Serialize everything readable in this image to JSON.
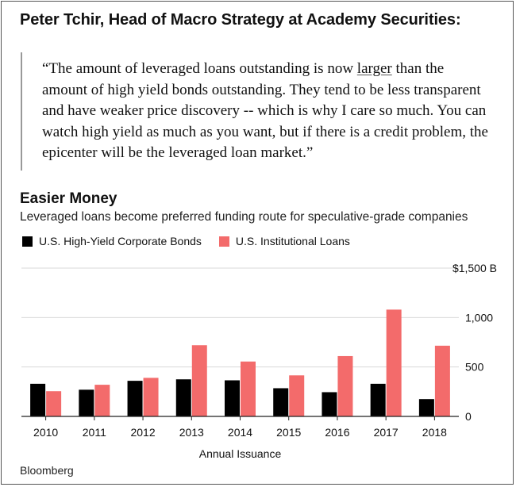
{
  "headline": "Peter Tchir, Head of Macro Strategy at Academy Securities:",
  "quote": {
    "before_link": "“The amount of leveraged loans outstanding is now ",
    "link_text": "larger",
    "after_link": " than the amount of high yield bonds outstanding. They tend to be less transparent and have weaker price discovery -- which is why I care so much. You can watch high yield as much as you want, but if there is a credit problem, the epicenter will be the leveraged loan market.”"
  },
  "colors": {
    "bonds": "#000000",
    "loans": "#f36b6b",
    "grid": "#d9d9d9",
    "axis": "#222222"
  },
  "chart_data": {
    "type": "bar",
    "title": "Easier Money",
    "subtitle": "Leveraged loans become preferred funding route for speculative-grade companies",
    "xlabel": "Annual Issuance",
    "ylabel": "",
    "categories": [
      "2010",
      "2011",
      "2012",
      "2013",
      "2014",
      "2015",
      "2016",
      "2017",
      "2018"
    ],
    "series": [
      {
        "name": "U.S. High-Yield Corporate Bonds",
        "values": [
          330,
          270,
          360,
          375,
          365,
          285,
          245,
          330,
          175
        ]
      },
      {
        "name": "U.S. Institutional Loans",
        "values": [
          255,
          320,
          390,
          720,
          555,
          415,
          610,
          1080,
          715
        ]
      }
    ],
    "ylim": [
      0,
      1500
    ],
    "yticks": [
      0,
      500,
      1000,
      1500
    ],
    "ytick_labels": [
      "0",
      "500",
      "1,000",
      "$1,500 B"
    ],
    "grid": true,
    "legend": "top-left"
  },
  "source": "Bloomberg"
}
